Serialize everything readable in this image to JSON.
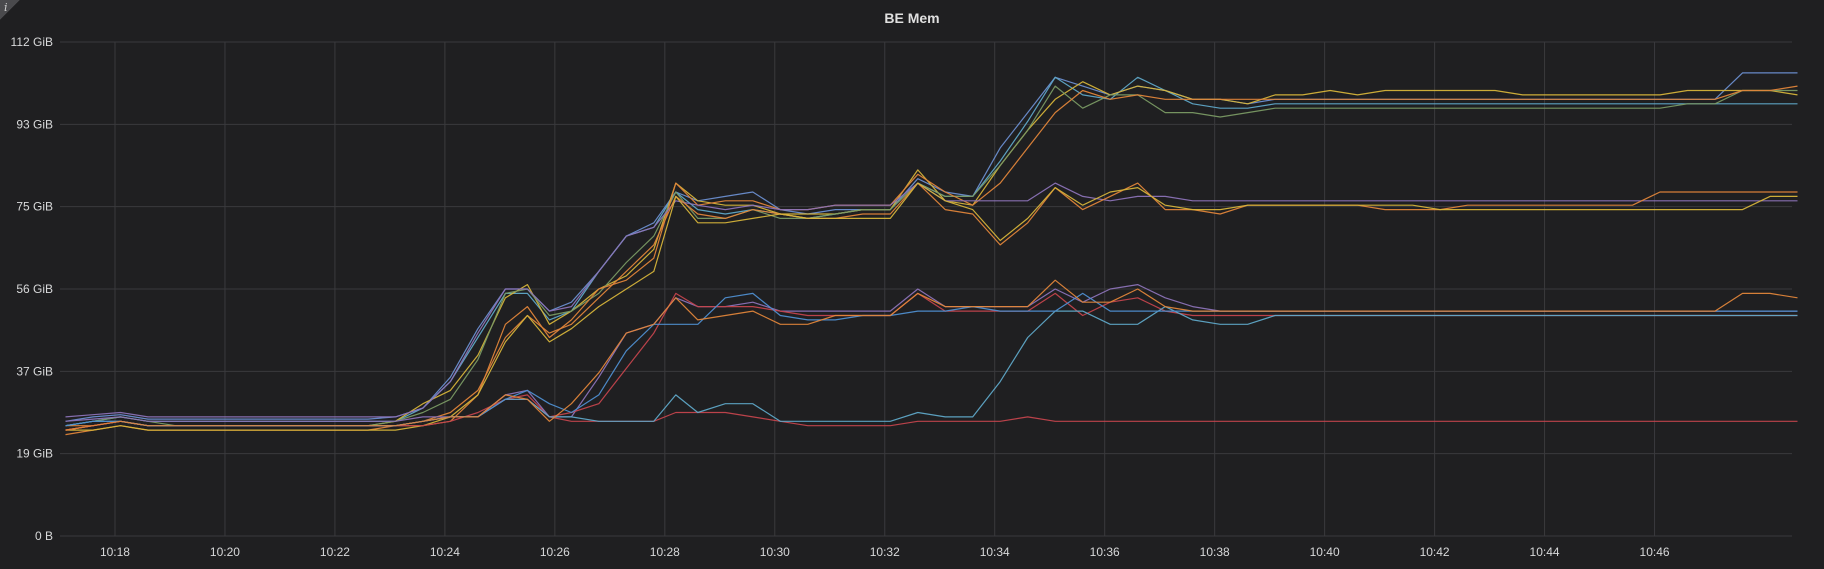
{
  "panel": {
    "title": "BE Mem",
    "info_icon": "info-icon"
  },
  "chart_data": {
    "type": "line",
    "title": "BE Mem",
    "xlabel": "",
    "ylabel": "",
    "y_unit": "GiB",
    "ylim": [
      0,
      112
    ],
    "y_ticks": [
      "0 B",
      "19 GiB",
      "37 GiB",
      "56 GiB",
      "75 GiB",
      "93 GiB",
      "112 GiB"
    ],
    "y_tick_values": [
      0,
      18.67,
      37.33,
      56,
      74.67,
      93.33,
      112
    ],
    "x_ticks": [
      "10:18",
      "10:20",
      "10:22",
      "10:24",
      "10:26",
      "10:28",
      "10:30",
      "10:32",
      "10:34",
      "10:36",
      "10:38",
      "10:40",
      "10:42",
      "10:44",
      "10:46"
    ],
    "x_tick_values": [
      1098,
      1100,
      1102,
      1104,
      1106,
      1108,
      1110,
      1112,
      1114,
      1116,
      1118,
      1120,
      1122,
      1124,
      1126
    ],
    "xlim": [
      1097,
      1128.5
    ],
    "x_time_labels": "minutes since 00:00 (e.g. 1098 = 10:18)",
    "grid": true,
    "legend": "none",
    "x": [
      1097.1,
      1097.6,
      1098.1,
      1098.6,
      1099.1,
      1099.6,
      1100.1,
      1100.6,
      1101.1,
      1101.6,
      1102.1,
      1102.6,
      1103.1,
      1103.6,
      1104.1,
      1104.6,
      1105.1,
      1105.5,
      1105.9,
      1106.3,
      1106.8,
      1107.3,
      1107.8,
      1108.2,
      1108.6,
      1109.1,
      1109.6,
      1110.1,
      1110.6,
      1111.1,
      1111.6,
      1112.1,
      1112.6,
      1113.1,
      1113.6,
      1114.1,
      1114.6,
      1115.1,
      1115.6,
      1116.1,
      1116.6,
      1117.1,
      1117.6,
      1118.1,
      1118.6,
      1119.1,
      1119.6,
      1120.1,
      1120.6,
      1121.1,
      1121.6,
      1122.1,
      1122.6,
      1123.1,
      1123.6,
      1124.1,
      1124.6,
      1125.1,
      1125.6,
      1126.1,
      1126.6,
      1127.1,
      1127.6,
      1128.1,
      1128.6
    ],
    "series": [
      {
        "color": "#6b8fd1",
        "values": [
          26,
          27,
          27.5,
          26.5,
          26.5,
          26.5,
          26.5,
          26.5,
          26.5,
          26.5,
          26.5,
          26.5,
          27,
          29,
          36,
          47,
          56,
          56,
          51,
          53,
          60,
          68,
          71,
          78,
          76,
          77,
          78,
          74,
          73,
          74,
          74,
          74,
          81,
          78,
          77,
          88,
          96,
          104,
          102,
          100,
          102,
          101,
          99,
          99,
          98,
          99,
          99,
          99,
          99,
          99,
          99,
          99,
          99,
          99,
          99,
          99,
          99,
          99,
          99,
          99,
          99,
          99,
          105,
          105,
          105
        ]
      },
      {
        "color": "#5fa8c8",
        "values": [
          25,
          26,
          27,
          26,
          26,
          26,
          26,
          26,
          26,
          26,
          26,
          26,
          26,
          29,
          35,
          45,
          55,
          55,
          49,
          51,
          60,
          68,
          70,
          78,
          74,
          73,
          74,
          73,
          72,
          73,
          74,
          74,
          80,
          77,
          77,
          85,
          94,
          104,
          100,
          99,
          104,
          101,
          98,
          97,
          97,
          98,
          98,
          98,
          98,
          98,
          98,
          98,
          98,
          98,
          98,
          98,
          98,
          98,
          98,
          98,
          98,
          98,
          98,
          98,
          98
        ]
      },
      {
        "color": "#d6b43a",
        "values": [
          24,
          25,
          26,
          25,
          25,
          25,
          25,
          25,
          25,
          25,
          25,
          25,
          26,
          30,
          33,
          41,
          54,
          57,
          48,
          51,
          56,
          59,
          65,
          80,
          76,
          75,
          75,
          73,
          73,
          73,
          74,
          74,
          83,
          76,
          75,
          84,
          92,
          99,
          103,
          100,
          102,
          101,
          99,
          99,
          98,
          100,
          100,
          101,
          100,
          101,
          101,
          101,
          101,
          101,
          100,
          100,
          100,
          100,
          100,
          100,
          101,
          101,
          101,
          101,
          100
        ]
      },
      {
        "color": "#7a9a64",
        "values": [
          25,
          26,
          27,
          26,
          25,
          25,
          25,
          25,
          25,
          25,
          25,
          25,
          26,
          28,
          31,
          40,
          55,
          56,
          50,
          51,
          55,
          62,
          68,
          78,
          72,
          72,
          74,
          72,
          72,
          73,
          74,
          74,
          80,
          77,
          77,
          84,
          92,
          102,
          97,
          100,
          100,
          96,
          96,
          95,
          96,
          97,
          97,
          97,
          97,
          97,
          97,
          97,
          97,
          97,
          97,
          97,
          97,
          97,
          97,
          97,
          98,
          98,
          101,
          101,
          101
        ]
      },
      {
        "color": "#e0853a",
        "values": [
          23,
          24,
          25,
          24,
          24,
          24,
          24,
          24,
          24,
          24,
          24,
          24,
          25,
          25,
          26,
          32,
          48,
          52,
          45,
          49,
          56,
          58,
          63,
          80,
          75,
          76,
          76,
          74,
          74,
          75,
          75,
          75,
          82,
          78,
          75,
          80,
          88,
          96,
          101,
          99,
          100,
          99,
          99,
          99,
          99,
          99,
          99,
          99,
          99,
          99,
          99,
          99,
          99,
          99,
          99,
          99,
          99,
          99,
          99,
          99,
          99,
          99,
          101,
          101,
          102
        ]
      },
      {
        "color": "#8c73b8",
        "values": [
          27,
          27.5,
          28,
          27,
          27,
          27,
          27,
          27,
          27,
          27,
          27,
          27,
          27,
          29,
          35,
          46,
          56,
          56,
          51,
          52,
          60,
          68,
          70,
          76,
          75,
          74,
          75,
          74,
          74,
          75,
          75,
          75,
          80,
          76,
          76,
          76,
          76,
          80,
          77,
          76,
          77,
          77,
          76,
          76,
          76,
          76,
          76,
          76,
          76,
          76,
          76,
          76,
          76,
          76,
          76,
          76,
          76,
          76,
          76,
          76,
          76,
          76,
          76,
          76,
          76
        ]
      },
      {
        "color": "#e0853a",
        "values": [
          25,
          25,
          26,
          25,
          25,
          25,
          25,
          25,
          25,
          25,
          25,
          25,
          25,
          26,
          28,
          33,
          45,
          50,
          46,
          48,
          54,
          60,
          66,
          77,
          73,
          72,
          74,
          73,
          72,
          72,
          73,
          73,
          80,
          74,
          73,
          66,
          71,
          79,
          74,
          77,
          80,
          74,
          74,
          73,
          75,
          75,
          75,
          75,
          75,
          74,
          74,
          74,
          75,
          75,
          75,
          75,
          75,
          75,
          75,
          78,
          78,
          78,
          78,
          78,
          78
        ]
      },
      {
        "color": "#d6b43a",
        "values": [
          24,
          24,
          25,
          24,
          24,
          24,
          24,
          24,
          24,
          24,
          24,
          24,
          24,
          25,
          27,
          32,
          44,
          50,
          44,
          47,
          52,
          56,
          60,
          77,
          71,
          71,
          72,
          73,
          72,
          72,
          72,
          72,
          80,
          76,
          74,
          67,
          72,
          79,
          75,
          78,
          79,
          75,
          74,
          74,
          75,
          75,
          75,
          75,
          75,
          75,
          75,
          74,
          74,
          74,
          74,
          74,
          74,
          74,
          74,
          74,
          74,
          74,
          74,
          77,
          77
        ]
      },
      {
        "color": "#c4454d",
        "values": [
          24,
          25,
          26,
          25,
          25,
          25,
          25,
          25,
          25,
          25,
          25,
          25,
          25,
          25,
          26,
          28,
          31,
          32,
          27,
          26,
          26,
          26,
          26,
          28,
          28,
          28,
          27,
          26,
          25,
          25,
          25,
          25,
          26,
          26,
          26,
          26,
          27,
          26,
          26,
          26,
          26,
          26,
          26,
          26,
          26,
          26,
          26,
          26,
          26,
          26,
          26,
          26,
          26,
          26,
          26,
          26,
          26,
          26,
          26,
          26,
          26,
          26,
          26,
          26,
          26
        ]
      },
      {
        "color": "#8c73b8",
        "values": [
          26,
          26.5,
          27,
          26,
          26,
          26,
          26,
          26,
          26,
          26,
          26,
          26,
          26,
          27,
          27,
          27,
          32,
          33,
          27,
          27,
          36,
          46,
          48,
          54,
          52,
          52,
          53,
          51,
          51,
          51,
          51,
          51,
          56,
          52,
          52,
          52,
          52,
          56,
          53,
          56,
          57,
          54,
          52,
          51,
          51,
          51,
          51,
          51,
          51,
          51,
          51,
          51,
          51,
          51,
          51,
          51,
          51,
          51,
          51,
          51,
          51,
          51,
          51,
          51,
          51
        ]
      },
      {
        "color": "#c4454d",
        "values": [
          24,
          25,
          26,
          25,
          25,
          25,
          25,
          25,
          25,
          25,
          25,
          25,
          25,
          26,
          27,
          27,
          31,
          31,
          27,
          28,
          30,
          38,
          46,
          55,
          52,
          52,
          52,
          51,
          50,
          50,
          50,
          50,
          55,
          51,
          51,
          51,
          51,
          55,
          50,
          53,
          54,
          51,
          50,
          50,
          50,
          50,
          50,
          50,
          50,
          50,
          50,
          50,
          50,
          50,
          50,
          50,
          50,
          50,
          50,
          50,
          50,
          50,
          50,
          50,
          50
        ]
      },
      {
        "color": "#5fa8c8",
        "values": [
          25,
          26,
          26,
          25,
          25,
          25,
          25,
          25,
          25,
          25,
          25,
          25,
          25,
          26,
          27,
          27,
          31,
          31,
          27,
          27,
          26,
          26,
          26,
          32,
          28,
          30,
          30,
          26,
          26,
          26,
          26,
          26,
          28,
          27,
          27,
          35,
          45,
          51,
          51,
          48,
          48,
          52,
          49,
          48,
          48,
          50,
          50,
          50,
          50,
          50,
          50,
          50,
          50,
          50,
          50,
          50,
          50,
          50,
          50,
          50,
          50,
          50,
          50,
          50,
          50
        ]
      },
      {
        "color": "#4f8fd1",
        "values": [
          25,
          26,
          26,
          25,
          25,
          25,
          25,
          25,
          25,
          25,
          25,
          25,
          25,
          26,
          27,
          27,
          31,
          33,
          30,
          28,
          32,
          42,
          48,
          48,
          48,
          54,
          55,
          50,
          49,
          49,
          50,
          50,
          51,
          51,
          52,
          51,
          51,
          51,
          55,
          51,
          51,
          51,
          51,
          51,
          51,
          51,
          51,
          51,
          51,
          51,
          51,
          51,
          51,
          51,
          51,
          51,
          51,
          51,
          51,
          51,
          51,
          51,
          51,
          51,
          51
        ]
      },
      {
        "color": "#e0853a",
        "values": [
          24,
          25,
          26,
          25,
          25,
          25,
          25,
          25,
          25,
          25,
          25,
          25,
          25,
          26,
          27,
          27,
          32,
          31,
          26,
          30,
          37,
          46,
          48,
          54,
          49,
          50,
          51,
          48,
          48,
          50,
          50,
          50,
          55,
          52,
          52,
          52,
          52,
          58,
          53,
          53,
          56,
          52,
          51,
          51,
          51,
          51,
          51,
          51,
          51,
          51,
          51,
          51,
          51,
          51,
          51,
          51,
          51,
          51,
          51,
          51,
          51,
          51,
          55,
          55,
          54
        ]
      }
    ]
  }
}
